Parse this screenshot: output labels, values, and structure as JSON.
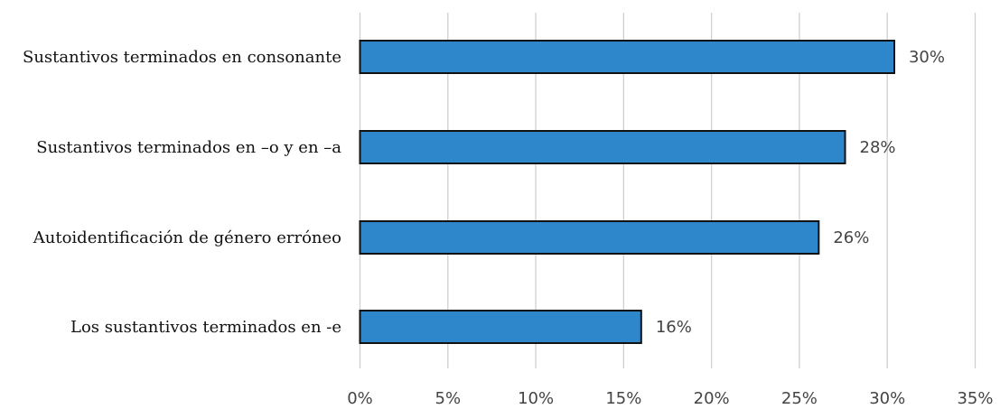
{
  "chart_data": {
    "type": "bar",
    "orientation": "horizontal",
    "categories": [
      "Sustantivos terminados en consonante",
      "Sustantivos terminados en –o y en –a",
      "Autoidentificación de género erróneo",
      "Los sustantivos terminados en -e"
    ],
    "values": [
      30.4,
      27.6,
      26.1,
      16.0
    ],
    "data_labels": [
      "30%",
      "28%",
      "26%",
      "16%"
    ],
    "x_ticks": [
      0,
      5,
      10,
      15,
      20,
      25,
      30,
      35
    ],
    "x_tick_labels": [
      "0%",
      "5%",
      "10%",
      "15%",
      "20%",
      "25%",
      "30%",
      "35%"
    ],
    "xlim": [
      0,
      35
    ],
    "title": "",
    "xlabel": "",
    "ylabel": "",
    "grid": "vertical",
    "legend": "none",
    "colors": {
      "bar_fill": "#2E86CB",
      "bar_stroke": "#111111",
      "grid": "#d0d0d0",
      "tick_text": "#444444",
      "category_text": "#111111"
    }
  }
}
